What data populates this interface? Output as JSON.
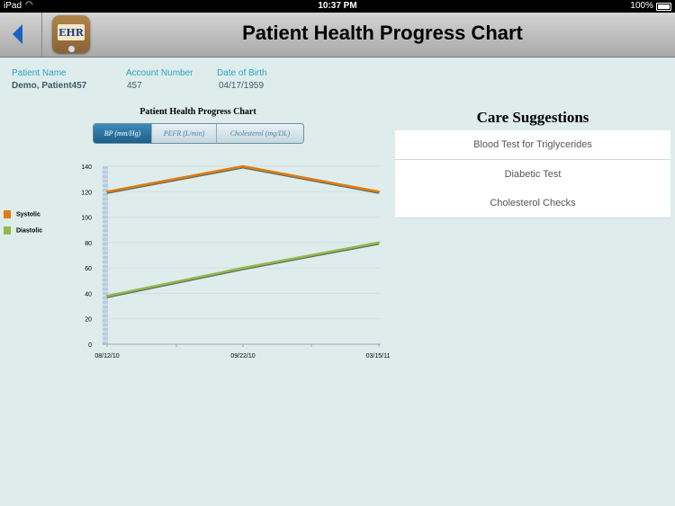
{
  "status_bar": {
    "carrier": "iPad",
    "time": "10:37 PM",
    "battery": "100%"
  },
  "header": {
    "title": "Patient Health Progress Chart",
    "app_icon_label": "EHR"
  },
  "patient": {
    "name_label": "Patient Name",
    "name": "Demo, Patient457",
    "account_label": "Account Number",
    "account": "457",
    "dob_label": "Date of Birth",
    "dob": "04/17/1959"
  },
  "tabs": [
    "BP (mm/Hg)",
    "PEFR (L/min)",
    "Cholesterol (mg/DL)"
  ],
  "legend": [
    {
      "name": "Systolic",
      "color": "#e07d10"
    },
    {
      "name": "Diastolic",
      "color": "#94b94a"
    }
  ],
  "care": {
    "title": "Care Suggestions",
    "items": [
      "Blood Test for Triglycerides",
      "Diabetic Test",
      "Cholesterol Checks"
    ]
  },
  "chart_data": {
    "type": "line",
    "title": "Patient Health Progress Chart",
    "categories": [
      "08/12/10",
      "09/22/10",
      "03/15/11"
    ],
    "series": [
      {
        "name": "Systolic",
        "values": [
          120,
          140,
          120
        ],
        "color": "#e07d10"
      },
      {
        "name": "Diastolic",
        "values": [
          38,
          60,
          80
        ],
        "color": "#94b94a"
      }
    ],
    "y_ticks": [
      0,
      20,
      40,
      60,
      80,
      100,
      120,
      140
    ],
    "ylim": [
      0,
      140
    ]
  }
}
